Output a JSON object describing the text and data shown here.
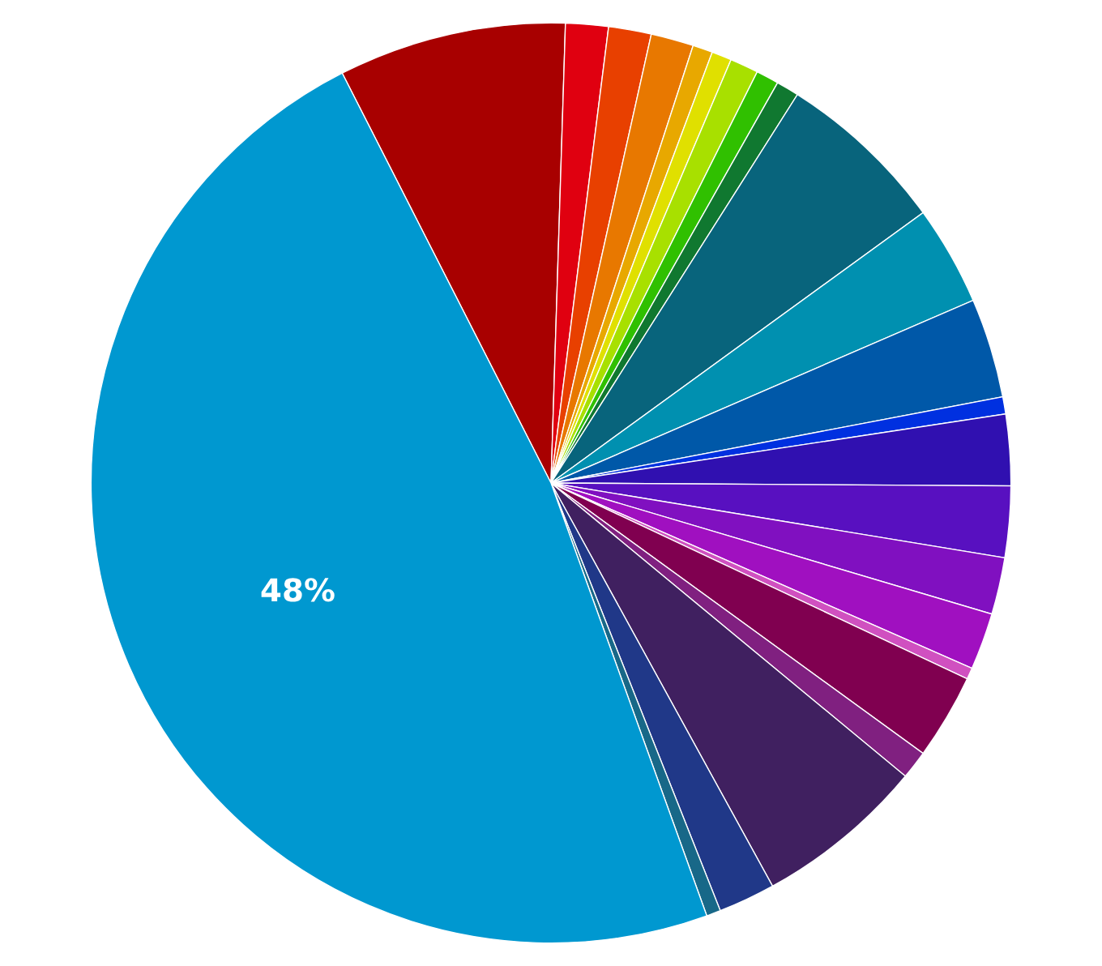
{
  "chart_data": {
    "type": "pie",
    "categories": [
      null,
      null,
      null,
      null,
      null,
      null,
      null,
      null,
      null,
      null,
      null,
      null,
      null,
      null,
      null,
      null,
      null,
      null,
      null,
      null,
      null,
      null,
      null,
      null
    ],
    "values": [
      8,
      1.5,
      1.5,
      1.5,
      0.7,
      0.7,
      1,
      0.8,
      0.8,
      6,
      3.5,
      3.5,
      0.6,
      2.5,
      2.5,
      2,
      2,
      0.4,
      3,
      1,
      6,
      2,
      0.5,
      48
    ],
    "colors": [
      "#a80000",
      "#e00010",
      "#e84000",
      "#e87800",
      "#e8a800",
      "#e0e000",
      "#a8e000",
      "#30c000",
      "#107830",
      "#08647c",
      "#0090b0",
      "#0058a8",
      "#0030e0",
      "#3010b0",
      "#5810c0",
      "#8010c0",
      "#a010c0",
      "#d050c0",
      "#800050",
      "#802080",
      "#402060",
      "#203888",
      "#186888",
      "#0098d0"
    ],
    "value_labels": [
      null,
      null,
      null,
      null,
      null,
      null,
      null,
      null,
      null,
      null,
      null,
      null,
      null,
      null,
      null,
      null,
      null,
      null,
      null,
      null,
      null,
      null,
      null,
      "48%"
    ]
  }
}
